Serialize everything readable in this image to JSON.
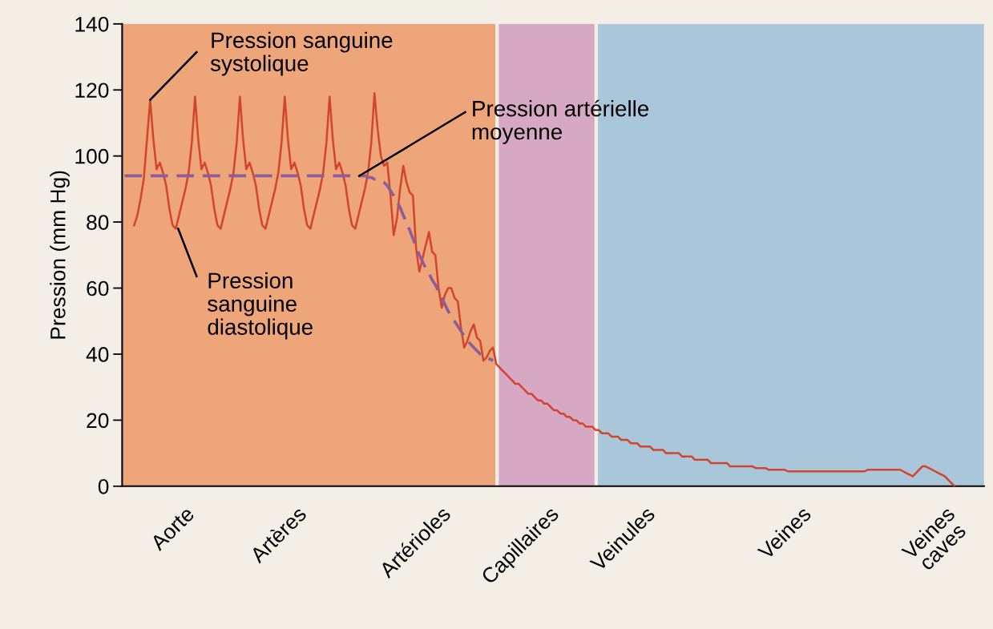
{
  "chart_data": {
    "type": "line",
    "ylabel": "Pression (mm Hg)",
    "categories": [
      null,
      null,
      null,
      null,
      null,
      null,
      null,
      null,
      null,
      null,
      null,
      null,
      null,
      null,
      null,
      null,
      null,
      null,
      null,
      null,
      null,
      null,
      null,
      null,
      null,
      null,
      null,
      null,
      null,
      null,
      null,
      null,
      null,
      null,
      null,
      null,
      null,
      null,
      null,
      null,
      null,
      null,
      null,
      null,
      null,
      null,
      null,
      null,
      null,
      null,
      null,
      null,
      null,
      null,
      null,
      null,
      null,
      null,
      null,
      null,
      null,
      null,
      null,
      null,
      null,
      null,
      null,
      null,
      null,
      null,
      null,
      null,
      null,
      null,
      null,
      null,
      null,
      null,
      null,
      null,
      null,
      null,
      null,
      null,
      null,
      null,
      null,
      null,
      null,
      null,
      null,
      null,
      null,
      null,
      null,
      null,
      null,
      null,
      null,
      null,
      null,
      null,
      null,
      null,
      null,
      null,
      null,
      null,
      null,
      null,
      null,
      null,
      null,
      null,
      null,
      null,
      null,
      null,
      null,
      null,
      null,
      null,
      null,
      null,
      null,
      null,
      null,
      null,
      null,
      null,
      null,
      null,
      null,
      null,
      null,
      null,
      null,
      null,
      null,
      null,
      null,
      null,
      null,
      null,
      null,
      null,
      null,
      null,
      null,
      null,
      null,
      null,
      null,
      null,
      null,
      null,
      null,
      null,
      null,
      null,
      null,
      null,
      null,
      null,
      null,
      null,
      null,
      null,
      null,
      null,
      null,
      null,
      null,
      null,
      null,
      null,
      null,
      null,
      null,
      null,
      null,
      null,
      null,
      null,
      null,
      null,
      null,
      null,
      null,
      null,
      null,
      null,
      null,
      null,
      null,
      null,
      null,
      null,
      null,
      null,
      null,
      null,
      null,
      null,
      null,
      null,
      null,
      null,
      null,
      null,
      null,
      null,
      null,
      null,
      null,
      null,
      null,
      null,
      null,
      null,
      null,
      null,
      null,
      null,
      null,
      null,
      null,
      null,
      null,
      null,
      null,
      null,
      null,
      null,
      null,
      null,
      null,
      null,
      null,
      null,
      null,
      null,
      null,
      null,
      null,
      null,
      null,
      null,
      null,
      null,
      null,
      null,
      null,
      null,
      null,
      null,
      null,
      null,
      null,
      null,
      null,
      null,
      null,
      null,
      null,
      null,
      null,
      null,
      null
    ],
    "ylim": [
      0,
      140
    ],
    "yticks": [
      0,
      20,
      40,
      60,
      80,
      100,
      120,
      140
    ],
    "grid": false,
    "marker": "none",
    "series": [
      {
        "color": "#d2452c",
        "line_style": "solid",
        "values": [
          null,
          null,
          null,
          79,
          82,
          87,
          93,
          105,
          117,
          105,
          96,
          98,
          95,
          91,
          84,
          79,
          78,
          82,
          86,
          90,
          95,
          104,
          118,
          105,
          96,
          98,
          95,
          91,
          84,
          79,
          78,
          82,
          86,
          90,
          95,
          104,
          118,
          105,
          96,
          98,
          95,
          91,
          84,
          79,
          78,
          82,
          86,
          90,
          95,
          104,
          118,
          105,
          96,
          98,
          95,
          91,
          84,
          79,
          78,
          82,
          86,
          90,
          95,
          104,
          118,
          105,
          96,
          98,
          95,
          91,
          84,
          79,
          78,
          82,
          86,
          90,
          95,
          104,
          119,
          108,
          100,
          97,
          98,
          88,
          76,
          81,
          90,
          97,
          92,
          89,
          88,
          72,
          65,
          69,
          73,
          77,
          71,
          70,
          60,
          54,
          58,
          60,
          60,
          57,
          56,
          48,
          42,
          44,
          47,
          49,
          45,
          44,
          38,
          39,
          41,
          42,
          37,
          36,
          35,
          34,
          33,
          32,
          31,
          31,
          30,
          29,
          28,
          28,
          27,
          26,
          26,
          25,
          25,
          24,
          23,
          23,
          22,
          22,
          21,
          21,
          20,
          20,
          19,
          19,
          18,
          18,
          18,
          17,
          17,
          16,
          16,
          16,
          15,
          15,
          15,
          14,
          14,
          14,
          13,
          13,
          13,
          12,
          12,
          12,
          12,
          11,
          11,
          11,
          11,
          10,
          10,
          10,
          10,
          10,
          9,
          9,
          9,
          9,
          8,
          8,
          8,
          8,
          8,
          7,
          7,
          7,
          7,
          7,
          7,
          6,
          6,
          6,
          6,
          6,
          6,
          6,
          6,
          5.5,
          5.5,
          5.5,
          5.5,
          5,
          5,
          5,
          5,
          5,
          5,
          4.5,
          4.5,
          4.5,
          4.5,
          4.5,
          4.5,
          4.5,
          4.5,
          4.5,
          4.5,
          4.5,
          4.5,
          4.5,
          4.5,
          4.5,
          4.5,
          4.5,
          4.5,
          4.5,
          4.5,
          4.5,
          4.5,
          4.5,
          4.5,
          4.5,
          5,
          5,
          5,
          5,
          5,
          5,
          5,
          5,
          5,
          5,
          5,
          4.5,
          4,
          3.5,
          3,
          4,
          5,
          6,
          6,
          5.5,
          5,
          4.5,
          4,
          3.5,
          3,
          2,
          1,
          0,
          null,
          null,
          null,
          null,
          null,
          null,
          null,
          null,
          null
        ]
      },
      {
        "color": "#8b5e9b",
        "line_style": "dashed",
        "values": [
          94,
          94,
          94,
          94,
          94,
          94,
          94,
          94,
          94,
          94,
          94,
          94,
          94,
          94,
          94,
          94,
          94,
          94,
          94,
          94,
          94,
          94,
          94,
          94,
          94,
          94,
          94,
          94,
          94,
          94,
          94,
          94,
          94,
          94,
          94,
          94,
          94,
          94,
          94,
          94,
          94,
          94,
          94,
          94,
          94,
          94,
          94,
          94,
          94,
          94,
          94,
          94,
          94,
          94,
          94,
          94,
          94,
          94,
          94,
          94,
          94,
          94,
          94,
          94,
          94,
          94,
          94,
          94,
          94,
          94,
          94,
          94,
          94,
          94,
          94,
          94,
          93.5,
          93.5,
          93,
          93,
          92.5,
          92,
          91,
          89.5,
          88,
          86,
          84.5,
          82,
          80,
          77.5,
          75,
          72.5,
          70,
          68,
          66,
          64.5,
          62.5,
          61,
          59,
          57,
          55,
          53,
          51.5,
          50,
          48.5,
          47,
          45.5,
          44,
          43,
          42,
          41,
          40,
          39.5,
          39,
          38.5,
          38,
          null,
          null,
          null,
          null,
          null,
          null,
          null,
          null,
          null,
          null,
          null,
          null,
          null,
          null,
          null,
          null,
          null,
          null,
          null,
          null,
          null,
          null,
          null,
          null,
          null,
          null,
          null,
          null,
          null,
          null,
          null,
          null,
          null,
          null,
          null,
          null,
          null,
          null,
          null,
          null,
          null,
          null,
          null,
          null,
          null,
          null,
          null,
          null,
          null,
          null,
          null,
          null,
          null,
          null,
          null,
          null,
          null,
          null,
          null,
          null,
          null,
          null,
          null,
          null,
          null,
          null,
          null,
          null,
          null,
          null,
          null,
          null,
          null,
          null,
          null,
          null,
          null,
          null,
          null,
          null,
          null,
          null,
          null,
          null,
          null,
          null,
          null,
          null,
          null,
          null,
          null,
          null,
          null,
          null,
          null,
          null,
          null,
          null,
          null,
          null,
          null,
          null,
          null,
          null,
          null,
          null,
          null,
          null,
          null,
          null,
          null,
          null,
          null,
          null,
          null,
          null,
          null,
          null,
          null,
          null,
          null,
          null,
          null,
          null,
          null,
          null,
          null,
          null,
          null,
          null,
          null,
          null,
          null,
          null,
          null,
          null,
          null,
          null,
          null,
          null,
          null,
          null,
          null,
          null,
          null,
          null,
          null,
          null,
          null,
          null,
          null,
          null,
          null
        ]
      }
    ],
    "annotations": [
      "Pression sanguine\nsystolique",
      "Pression artérielle\nmoyenne",
      "Pression\nsanguine\ndiastolique",
      "Aorte",
      "Artères",
      "Artérioles",
      "Capillaires",
      "Veinules",
      "Veines",
      "Veines\ncaves"
    ]
  }
}
